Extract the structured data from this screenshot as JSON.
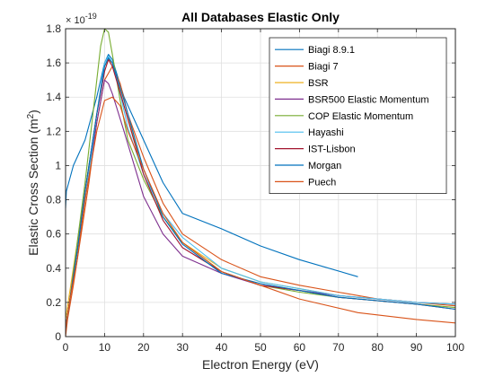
{
  "chart_data": {
    "type": "line",
    "title": "All Databases Elastic Only",
    "xlabel": "Electron Energy (eV)",
    "ylabel": "Elastic Cross Section (m",
    "ylabel_sup": "2",
    "ylabel_end": ")",
    "y_exponent_base": "× 10",
    "y_exponent_power": "-19",
    "xlim": [
      0,
      100
    ],
    "ylim": [
      0,
      1.8
    ],
    "x_ticks": [
      "0",
      "10",
      "20",
      "30",
      "40",
      "50",
      "60",
      "70",
      "80",
      "90",
      "100"
    ],
    "y_ticks": [
      "0",
      "0.2",
      "0.4",
      "0.6",
      "0.8",
      "1",
      "1.2",
      "1.4",
      "1.6",
      "1.8"
    ],
    "grid": true,
    "legend_position": "top-right",
    "series": [
      {
        "name": "Biagi 8.9.1",
        "color": "#0072BD",
        "x": [
          0,
          0.2,
          2,
          5,
          8,
          10,
          11,
          12,
          15,
          20,
          25,
          30,
          40,
          50,
          60,
          75
        ],
        "y": [
          0.75,
          0.85,
          1.0,
          1.15,
          1.4,
          1.6,
          1.65,
          1.62,
          1.4,
          1.15,
          0.9,
          0.72,
          0.63,
          0.53,
          0.45,
          0.35
        ]
      },
      {
        "name": "Biagi 7",
        "color": "#D95319",
        "x": [
          0,
          0.5,
          2,
          4,
          6,
          8,
          10,
          12,
          14,
          16,
          20,
          25,
          30,
          40,
          50,
          60,
          70,
          80,
          90,
          100
        ],
        "y": [
          0,
          0.1,
          0.3,
          0.6,
          0.9,
          1.25,
          1.5,
          1.58,
          1.48,
          1.3,
          1.05,
          0.78,
          0.6,
          0.45,
          0.35,
          0.3,
          0.26,
          0.22,
          0.2,
          0.18
        ]
      },
      {
        "name": "BSR",
        "color": "#EDB120",
        "x": [
          0,
          1,
          3,
          5,
          8,
          10,
          11,
          12,
          15,
          20,
          25,
          30,
          40,
          50,
          60,
          70,
          80,
          90,
          100
        ],
        "y": [
          0.1,
          0.25,
          0.55,
          0.85,
          1.3,
          1.58,
          1.62,
          1.6,
          1.35,
          0.98,
          0.7,
          0.55,
          0.4,
          0.32,
          0.28,
          0.24,
          0.22,
          0.2,
          0.19
        ]
      },
      {
        "name": "BSR500 Elastic Momentum",
        "color": "#7E2F8E",
        "x": [
          0,
          1,
          3,
          5,
          8,
          10,
          11,
          12,
          15,
          20,
          25,
          30,
          40,
          50,
          60,
          70,
          80,
          90,
          100
        ],
        "y": [
          0.05,
          0.2,
          0.5,
          0.8,
          1.25,
          1.5,
          1.48,
          1.42,
          1.2,
          0.82,
          0.6,
          0.47,
          0.37,
          0.3,
          0.27,
          0.24,
          0.22,
          0.2,
          0.19
        ]
      },
      {
        "name": "COP Elastic Momentum",
        "color": "#77AC30",
        "x": [
          0,
          1,
          3,
          5,
          7,
          9,
          10,
          11,
          12,
          14,
          16,
          20,
          25,
          30,
          40,
          50,
          60,
          70,
          80,
          90,
          100
        ],
        "y": [
          0.05,
          0.2,
          0.55,
          0.9,
          1.3,
          1.7,
          1.8,
          1.78,
          1.65,
          1.38,
          1.15,
          0.92,
          0.7,
          0.55,
          0.38,
          0.3,
          0.26,
          0.23,
          0.21,
          0.19,
          0.17
        ]
      },
      {
        "name": "Hayashi",
        "color": "#4DBEEE",
        "x": [
          0,
          2,
          4,
          6,
          8,
          10,
          11,
          12,
          14,
          16,
          20,
          25,
          30,
          40,
          50,
          60,
          70,
          80,
          90,
          100
        ],
        "y": [
          0.05,
          0.35,
          0.65,
          0.95,
          1.3,
          1.6,
          1.64,
          1.6,
          1.42,
          1.22,
          0.95,
          0.72,
          0.58,
          0.4,
          0.32,
          0.28,
          0.24,
          0.22,
          0.2,
          0.19
        ]
      },
      {
        "name": "IST-Lisbon",
        "color": "#A2142F",
        "x": [
          0,
          1,
          3,
          5,
          8,
          10,
          11,
          12,
          15,
          20,
          25,
          30,
          40,
          50,
          60,
          70,
          80,
          90,
          100
        ],
        "y": [
          0.05,
          0.2,
          0.5,
          0.85,
          1.3,
          1.55,
          1.62,
          1.58,
          1.35,
          0.95,
          0.68,
          0.52,
          0.38,
          0.3,
          0.27,
          0.23,
          0.21,
          0.19,
          0.16
        ]
      },
      {
        "name": "Morgan",
        "color": "#0072BD",
        "x": [
          0,
          1,
          3,
          5,
          8,
          10,
          11,
          12,
          15,
          20,
          25,
          30,
          40,
          50,
          60,
          70,
          80,
          90,
          100
        ],
        "y": [
          0.05,
          0.2,
          0.5,
          0.85,
          1.3,
          1.58,
          1.63,
          1.6,
          1.38,
          0.98,
          0.7,
          0.54,
          0.37,
          0.31,
          0.27,
          0.23,
          0.21,
          0.19,
          0.16
        ]
      },
      {
        "name": "Puech",
        "color": "#D95319",
        "x": [
          0,
          1,
          3,
          5,
          8,
          10,
          12,
          14,
          16,
          20,
          25,
          30,
          40,
          50,
          60,
          75,
          90,
          100
        ],
        "y": [
          0.05,
          0.2,
          0.45,
          0.8,
          1.2,
          1.38,
          1.4,
          1.35,
          1.2,
          0.98,
          0.72,
          0.55,
          0.38,
          0.3,
          0.22,
          0.14,
          0.1,
          0.08
        ]
      }
    ]
  }
}
